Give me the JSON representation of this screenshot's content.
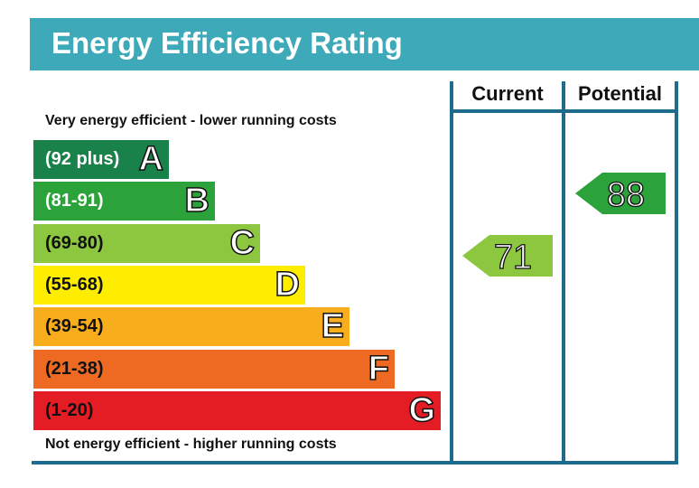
{
  "top_cutoff_text": "...                    ,  ...                              ,              ...",
  "title": "Energy Efficiency Rating",
  "columns": {
    "current": "Current",
    "potential": "Potential"
  },
  "top_note": "Very energy efficient - lower running costs",
  "bottom_note": "Not energy efficient - higher running costs",
  "colors": {
    "header_bg": "#3ea9b9",
    "frame": "#1f6b8d",
    "A": "#19814a",
    "B": "#2ba33a",
    "C": "#8dc63f",
    "D": "#ffed00",
    "E": "#f8ad1d",
    "F": "#ee6a22",
    "G": "#e31d23"
  },
  "chart_data": {
    "type": "bar",
    "title": "Energy Efficiency Rating",
    "bands": [
      {
        "letter": "A",
        "range": "(92 plus)",
        "min": 92,
        "max": 100
      },
      {
        "letter": "B",
        "range": "(81-91)",
        "min": 81,
        "max": 91
      },
      {
        "letter": "C",
        "range": "(69-80)",
        "min": 69,
        "max": 80
      },
      {
        "letter": "D",
        "range": "(55-68)",
        "min": 55,
        "max": 68
      },
      {
        "letter": "E",
        "range": "(39-54)",
        "min": 39,
        "max": 54
      },
      {
        "letter": "F",
        "range": "(21-38)",
        "min": 21,
        "max": 38
      },
      {
        "letter": "G",
        "range": "(1-20)",
        "min": 1,
        "max": 20
      }
    ],
    "current": {
      "label": "Current",
      "value": 71,
      "band": "C"
    },
    "potential": {
      "label": "Potential",
      "value": 88,
      "band": "B"
    }
  }
}
